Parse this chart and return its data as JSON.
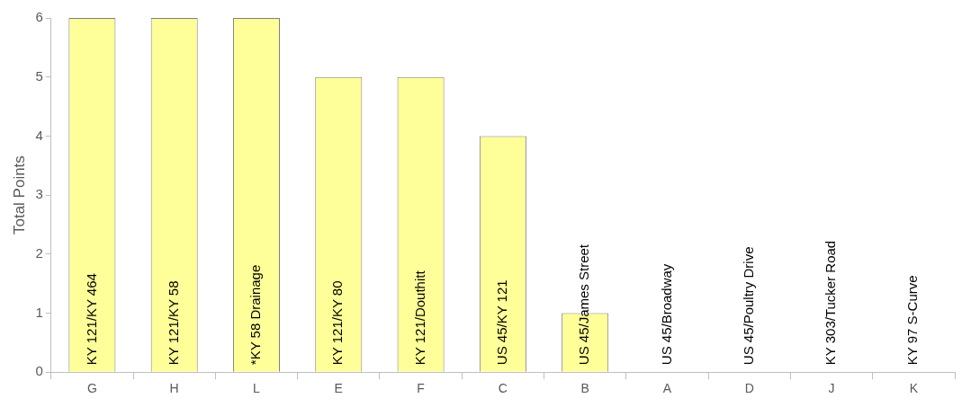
{
  "chart_data": {
    "type": "bar",
    "ylabel": "Total Points",
    "categories": [
      "G",
      "H",
      "L",
      "E",
      "F",
      "C",
      "B",
      "A",
      "D",
      "J",
      "K"
    ],
    "values": [
      6,
      6,
      6,
      5,
      5,
      4,
      1,
      0,
      0,
      0,
      0
    ],
    "color": "#ffff99",
    "ylim": [
      0,
      6
    ],
    "yticks": [
      0,
      1,
      2,
      3,
      4,
      5,
      6
    ],
    "grid": false,
    "legend": false,
    "annotations": [
      {
        "text": "KY 121/KY 464",
        "x": "G",
        "y": 0
      },
      {
        "text": "KY 121/KY 58",
        "x": "H",
        "y": 0
      },
      {
        "text": "*KY 58 Drainage",
        "x": "L",
        "y": 0
      },
      {
        "text": "KY 121/KY 80",
        "x": "E",
        "y": 0
      },
      {
        "text": "KY 121/Douthitt",
        "x": "F",
        "y": 0
      },
      {
        "text": "US 45/KY 121",
        "x": "C",
        "y": 0
      },
      {
        "text": "US 45/James Street",
        "x": "B",
        "y": 0
      },
      {
        "text": "US 45/Broadway",
        "x": "A",
        "y": 0
      },
      {
        "text": "US 45/Poultry Drive",
        "x": "D",
        "y": 0
      },
      {
        "text": "KY 303/Tucker Road",
        "x": "J",
        "y": 0
      },
      {
        "text": "KY 97 S-Curve",
        "x": "K",
        "y": 0
      }
    ]
  }
}
